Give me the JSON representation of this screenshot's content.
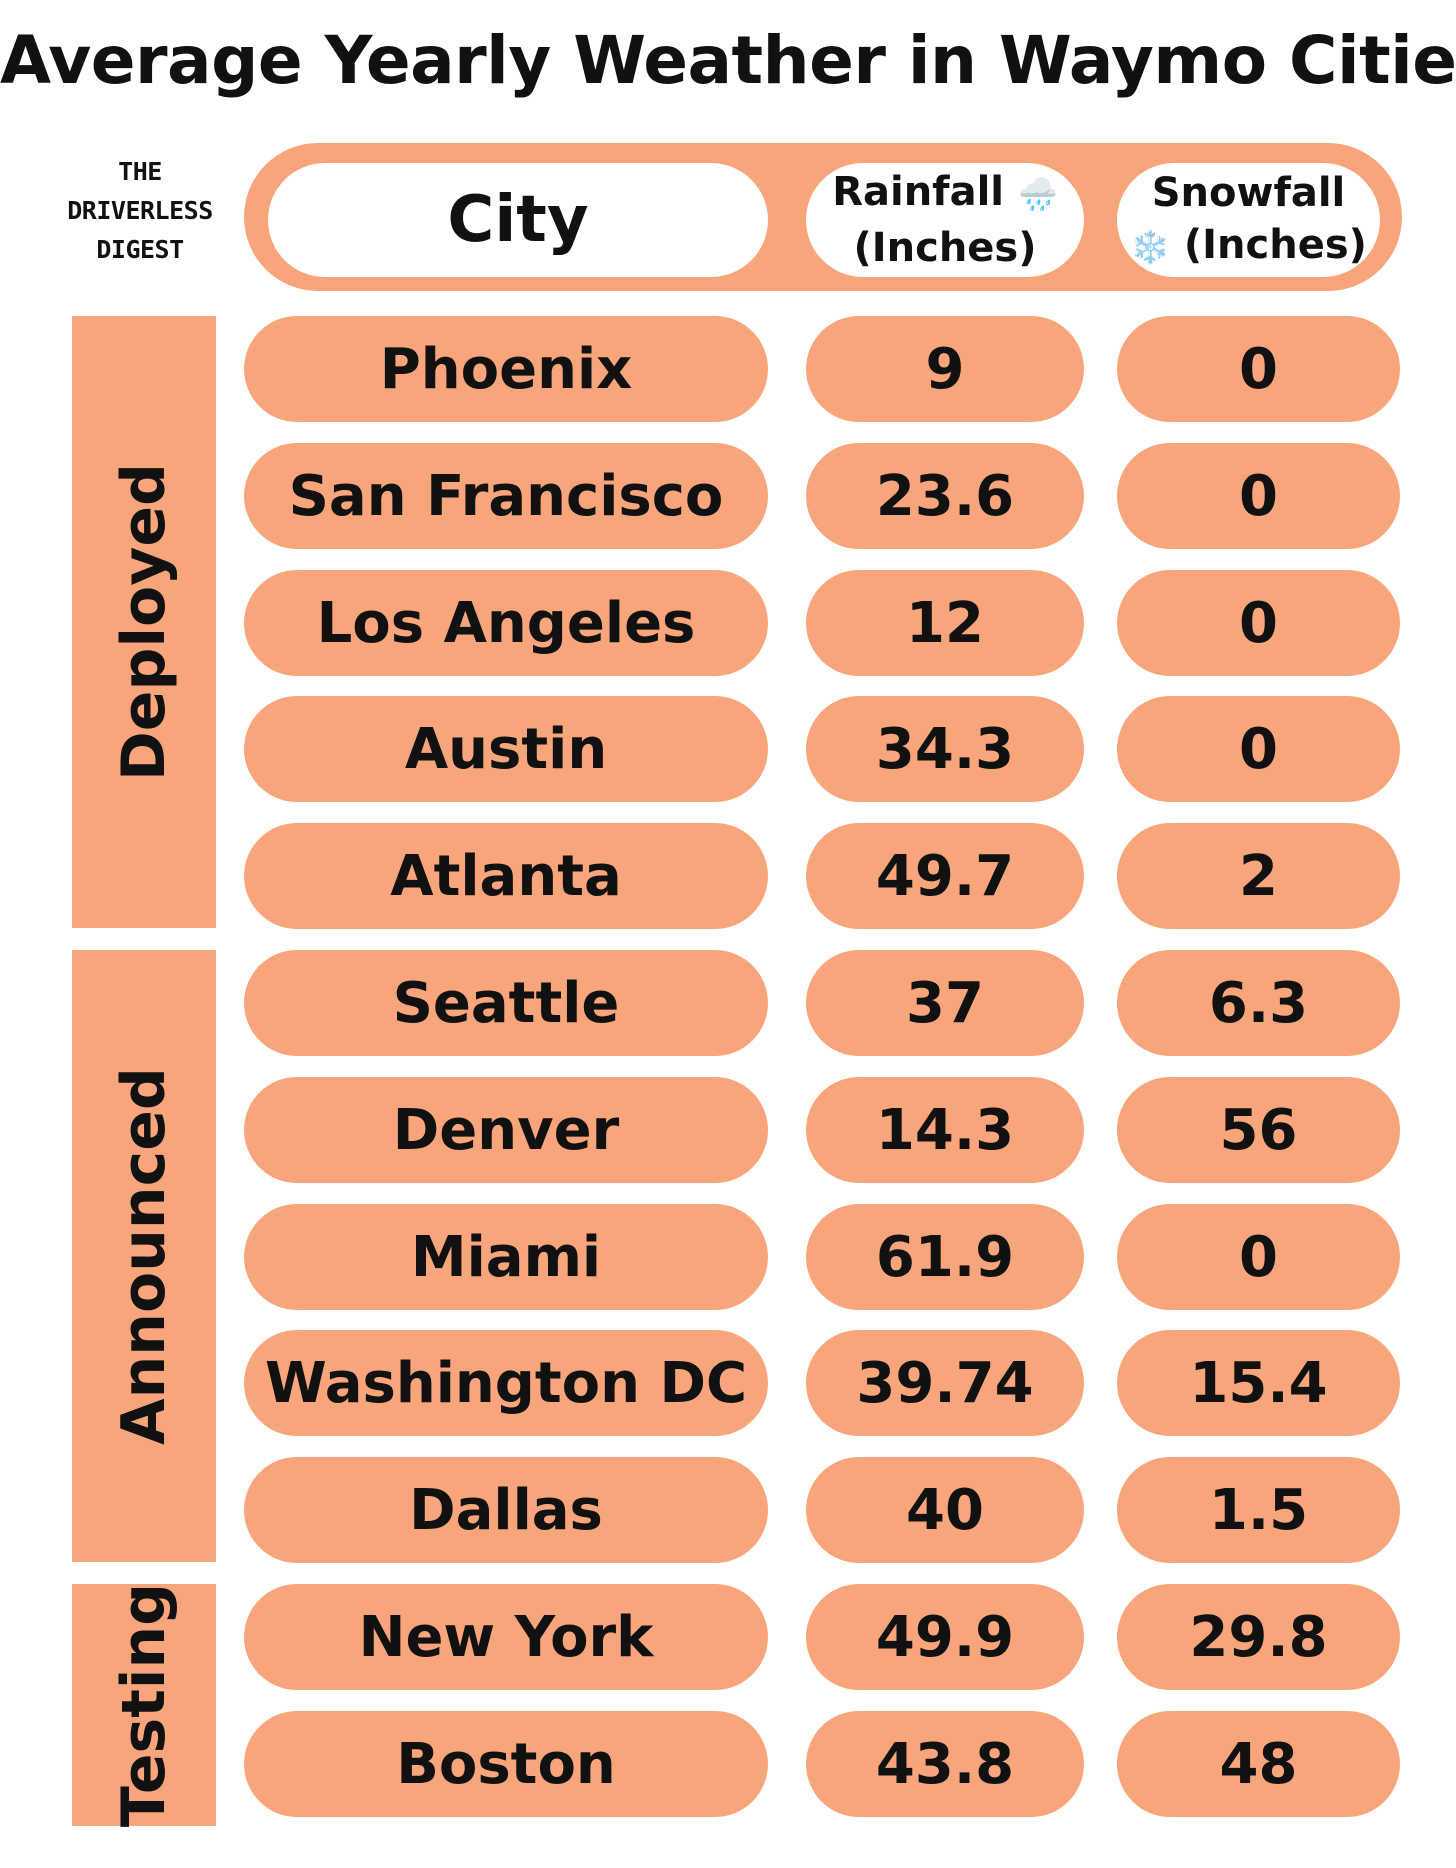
{
  "title": "Average Yearly Weather in Waymo Cities",
  "brand": {
    "line1": "THE",
    "line2": "DRIVERLESS",
    "line3": "DIGEST"
  },
  "colors": {
    "cell": "#F9A57C",
    "header_bar": "#F9A57C",
    "group": "#F9A57C",
    "background": "#FFFFFF",
    "text": "#111111"
  },
  "chart_data": {
    "type": "table",
    "title": "Average Yearly Weather in Waymo Cities",
    "columns": [
      {
        "label": "City"
      },
      {
        "label_line1": "Rainfall",
        "emoji": "🌧️",
        "label_line2": "(Inches)"
      },
      {
        "label_line1": "Snowfall",
        "emoji": "❄️",
        "label_line2": "(Inches)"
      }
    ],
    "groups": [
      {
        "name": "Deployed",
        "rows": [
          {
            "city": "Phoenix",
            "rainfall": "9",
            "snowfall": "0"
          },
          {
            "city": "San Francisco",
            "rainfall": "23.6",
            "snowfall": "0"
          },
          {
            "city": "Los Angeles",
            "rainfall": "12",
            "snowfall": "0"
          },
          {
            "city": "Austin",
            "rainfall": "34.3",
            "snowfall": "0"
          },
          {
            "city": "Atlanta",
            "rainfall": "49.7",
            "snowfall": "2"
          }
        ]
      },
      {
        "name": "Announced",
        "rows": [
          {
            "city": "Seattle",
            "rainfall": "37",
            "snowfall": "6.3"
          },
          {
            "city": "Denver",
            "rainfall": "14.3",
            "snowfall": "56"
          },
          {
            "city": "Miami",
            "rainfall": "61.9",
            "snowfall": "0"
          },
          {
            "city": "Washington DC",
            "rainfall": "39.74",
            "snowfall": "15.4"
          },
          {
            "city": "Dallas",
            "rainfall": "40",
            "snowfall": "1.5"
          }
        ]
      },
      {
        "name": "Testing",
        "rows": [
          {
            "city": "New York",
            "rainfall": "49.9",
            "snowfall": "29.8"
          },
          {
            "city": "Boston",
            "rainfall": "43.8",
            "snowfall": "48"
          }
        ]
      }
    ]
  }
}
